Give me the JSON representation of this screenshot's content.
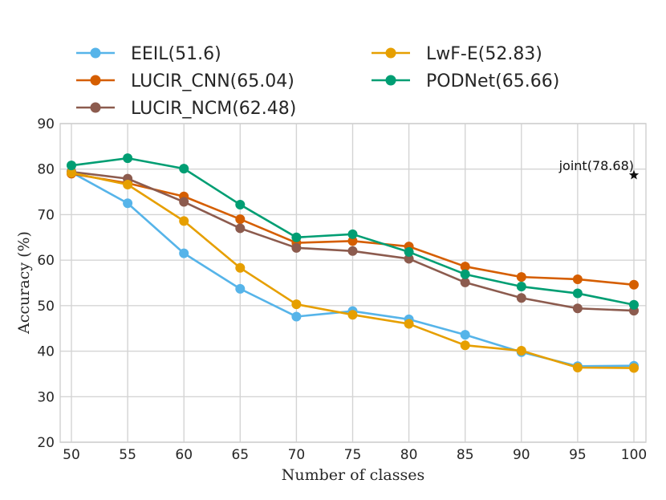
{
  "chart_data": {
    "type": "line",
    "title": "",
    "xlabel": "Number of classes",
    "ylabel": "Accuracy (%)",
    "x": [
      50,
      55,
      60,
      65,
      70,
      75,
      80,
      85,
      90,
      95,
      100
    ],
    "xlim": [
      50,
      100
    ],
    "ylim": [
      20,
      90
    ],
    "yticks": [
      20,
      30,
      40,
      50,
      60,
      70,
      80,
      90
    ],
    "grid": true,
    "legend_position": "top",
    "series": [
      {
        "name": "EEIL(51.6)",
        "color": "#56b4e9",
        "values": [
          79.3,
          72.5,
          61.5,
          53.7,
          47.6,
          48.8,
          47.0,
          43.6,
          39.8,
          36.7,
          36.8
        ]
      },
      {
        "name": "LUCIR_CNN(65.04)",
        "color": "#d55e00",
        "values": [
          79.0,
          76.9,
          74.0,
          69.0,
          63.8,
          64.2,
          63.0,
          58.6,
          56.3,
          55.8,
          54.6
        ]
      },
      {
        "name": "LUCIR_NCM(62.48)",
        "color": "#8c5b4e",
        "values": [
          79.4,
          77.9,
          72.8,
          67.0,
          62.7,
          62.0,
          60.3,
          55.1,
          51.7,
          49.4,
          48.9
        ]
      },
      {
        "name": "LwF-E(52.83)",
        "color": "#e69f00",
        "values": [
          79.2,
          76.6,
          68.6,
          58.3,
          50.3,
          48.0,
          46.0,
          41.3,
          40.1,
          36.4,
          36.3
        ]
      },
      {
        "name": "PODNet(65.66)",
        "color": "#009e73",
        "values": [
          80.8,
          82.4,
          80.1,
          72.2,
          65.0,
          65.7,
          61.8,
          56.9,
          54.2,
          52.7,
          50.2
        ]
      }
    ],
    "annotations": [
      {
        "text": "joint(78.68)",
        "x": 100,
        "y": 78.68,
        "marker": "star",
        "color": "#111111"
      }
    ]
  }
}
